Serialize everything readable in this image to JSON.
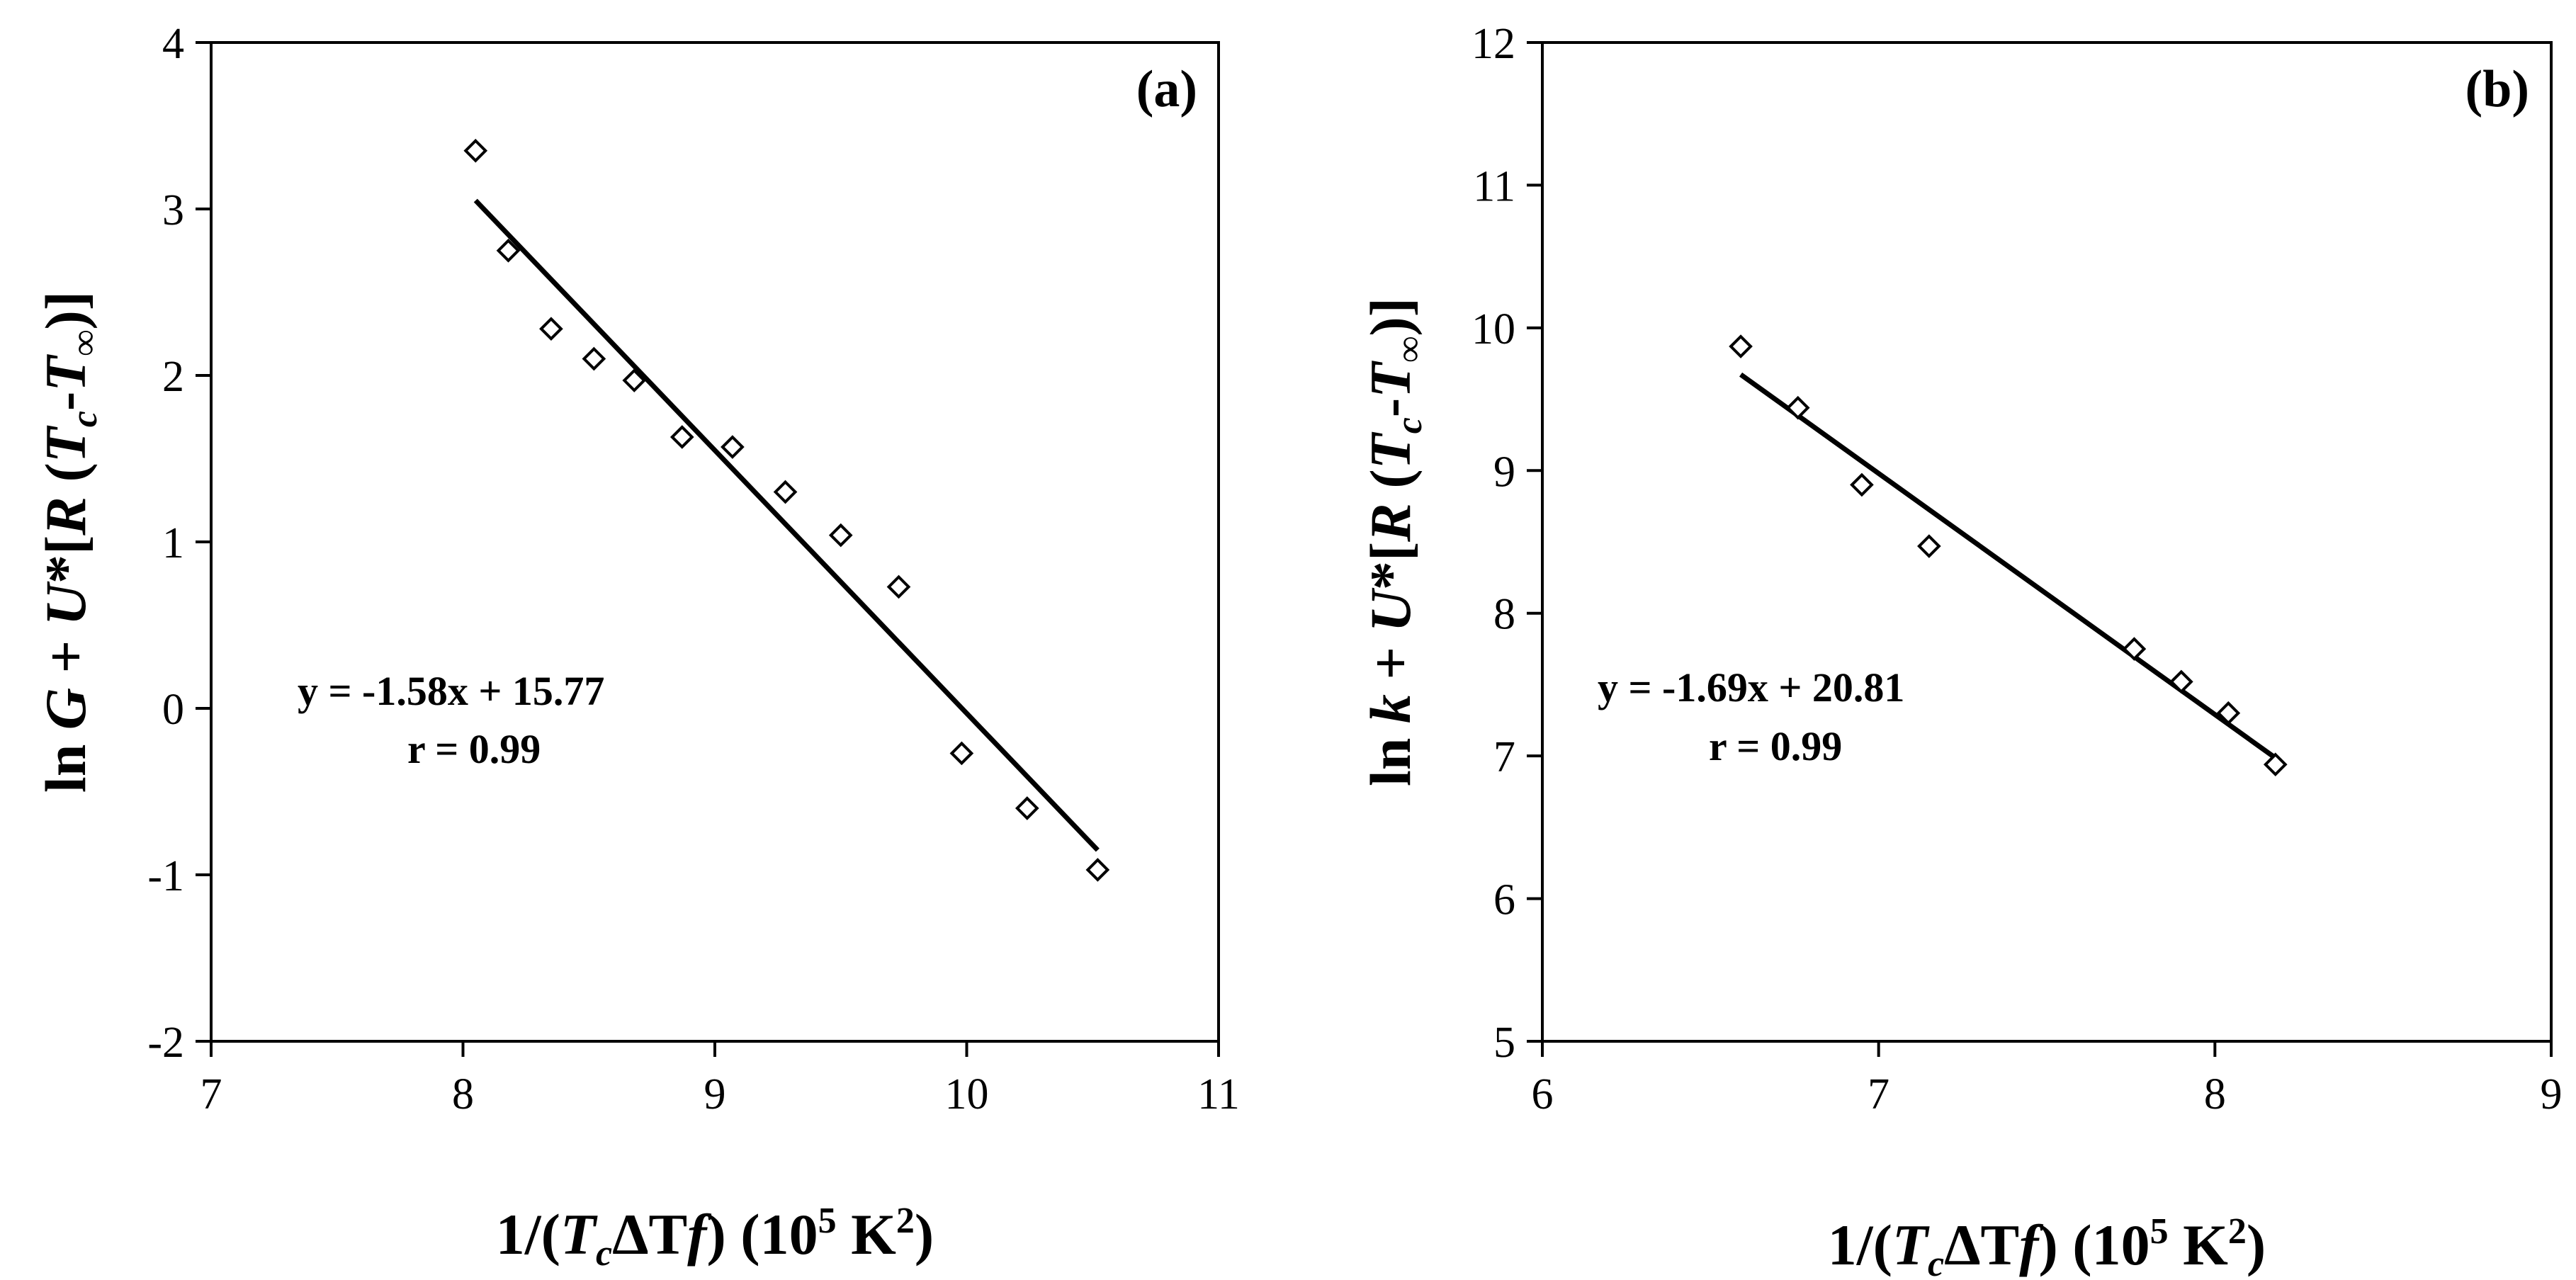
{
  "chart_data": [
    {
      "type": "scatter",
      "panel_label": "(a)",
      "x_label": {
        "pre": "1/(",
        "italic": "T",
        "sub": "c",
        "mid": "ΔT",
        "italic2": "f",
        "post": ") (10",
        "sup": "5",
        "end": " K",
        "sup2": "2",
        "close": ")"
      },
      "y_label": {
        "pre": "ln ",
        "var": "G",
        "mid": " + ",
        "var2": "U",
        "rest": "*[",
        "var3": "R",
        "open": " (",
        "t1": "T",
        "s1": "c",
        "dash": "-",
        "t2": "T",
        "s2": "∞",
        "close": ")]"
      },
      "xlim": [
        7,
        11
      ],
      "ylim": [
        -2,
        4
      ],
      "x_ticks": [
        "7",
        "8",
        "9",
        "10",
        "11"
      ],
      "y_ticks": [
        "-2",
        "-1",
        "0",
        "1",
        "2",
        "3",
        "4"
      ],
      "points": [
        {
          "x": 8.05,
          "y": 3.35
        },
        {
          "x": 8.18,
          "y": 2.75
        },
        {
          "x": 8.35,
          "y": 2.28
        },
        {
          "x": 8.52,
          "y": 2.1
        },
        {
          "x": 8.68,
          "y": 1.97
        },
        {
          "x": 8.87,
          "y": 1.63
        },
        {
          "x": 9.07,
          "y": 1.57
        },
        {
          "x": 9.28,
          "y": 1.3
        },
        {
          "x": 9.5,
          "y": 1.04
        },
        {
          "x": 9.73,
          "y": 0.73
        },
        {
          "x": 9.98,
          "y": -0.27
        },
        {
          "x": 10.24,
          "y": -0.6
        },
        {
          "x": 10.52,
          "y": -0.97
        }
      ],
      "fit": {
        "slope": -1.58,
        "intercept": 15.77,
        "x_start": 8.05,
        "x_end": 10.52
      },
      "equation": "y = -1.58x + 15.77",
      "r_text": "r = 0.99",
      "grid": false
    },
    {
      "type": "scatter",
      "panel_label": "(b)",
      "x_label": {
        "pre": "1/(",
        "italic": "T",
        "sub": "c",
        "mid": "ΔT",
        "italic2": "f",
        "post": ") (10",
        "sup": "5",
        "end": " K",
        "sup2": "2",
        "close": ")"
      },
      "y_label": {
        "pre": "ln ",
        "var": "k",
        "mid": " + ",
        "var2": "U",
        "rest": "*[",
        "var3": "R",
        "open": " (",
        "t1": "T",
        "s1": "c",
        "dash": "-",
        "t2": "T",
        "s2": "∞",
        "close": ")]"
      },
      "xlim": [
        6,
        9
      ],
      "ylim": [
        5,
        12
      ],
      "x_ticks": [
        "6",
        "7",
        "8",
        "9"
      ],
      "y_ticks": [
        "5",
        "6",
        "7",
        "8",
        "9",
        "10",
        "11",
        "12"
      ],
      "points": [
        {
          "x": 6.59,
          "y": 9.87
        },
        {
          "x": 6.76,
          "y": 9.44
        },
        {
          "x": 6.95,
          "y": 8.9
        },
        {
          "x": 7.15,
          "y": 8.47
        },
        {
          "x": 7.76,
          "y": 7.75
        },
        {
          "x": 7.9,
          "y": 7.52
        },
        {
          "x": 8.04,
          "y": 7.3
        },
        {
          "x": 8.18,
          "y": 6.94
        }
      ],
      "fit": {
        "slope": -1.69,
        "intercept": 20.81,
        "x_start": 6.59,
        "x_end": 8.18
      },
      "equation": "y = -1.69x + 20.81",
      "r_text": "r = 0.99",
      "grid": false
    }
  ]
}
